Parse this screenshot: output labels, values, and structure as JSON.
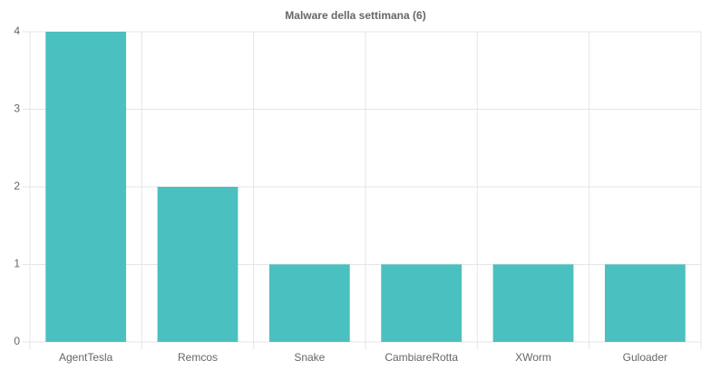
{
  "chart_data": {
    "type": "bar",
    "title": "Malware della settimana (6)",
    "categories": [
      "AgentTesla",
      "Remcos",
      "Snake",
      "CambiareRotta",
      "XWorm",
      "Guloader"
    ],
    "values": [
      4,
      2,
      1,
      1,
      1,
      1
    ],
    "color": "#4bc0c0",
    "ylim": [
      0,
      4
    ],
    "yticks": [
      0,
      1,
      2,
      3,
      4
    ],
    "grid": true
  }
}
